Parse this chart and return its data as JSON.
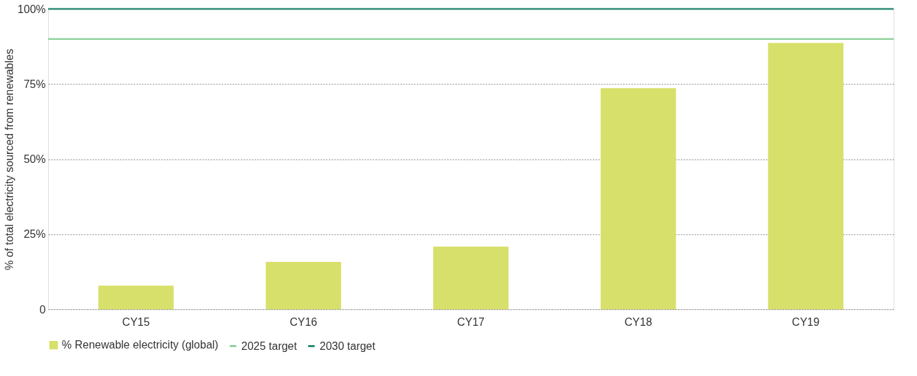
{
  "chart_data": {
    "type": "bar",
    "ylabel": "% of total electricity sourced from renewables",
    "categories": [
      "CY15",
      "CY16",
      "CY17",
      "CY18",
      "CY19"
    ],
    "series": [
      {
        "name": "% Renewable electricity (global)",
        "color": "#d7e06a",
        "values": [
          7.9,
          15.8,
          20.9,
          73.6,
          88.7
        ]
      }
    ],
    "ylim": [
      0,
      100
    ],
    "yticks": [
      {
        "value": 0,
        "label": "0"
      },
      {
        "value": 25,
        "label": "25%"
      },
      {
        "value": 50,
        "label": "50%"
      },
      {
        "value": 75,
        "label": "75%"
      },
      {
        "value": 100,
        "label": "100%"
      }
    ],
    "ref_lines": [
      {
        "axis": "y",
        "value": 90,
        "label": "2025 target",
        "color": "#8fd19e",
        "line_style": "solid"
      },
      {
        "axis": "y",
        "value": 100,
        "label": "2030 target",
        "color": "#2a8a73",
        "line_style": "solid"
      }
    ],
    "grid": "y",
    "legend": "bottom left"
  }
}
